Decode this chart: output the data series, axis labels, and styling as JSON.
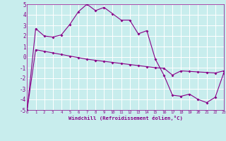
{
  "xlabel": "Windchill (Refroidissement éolien,°C)",
  "bg_color": "#c8eded",
  "grid_color": "#b0dede",
  "line_color": "#880088",
  "xlim": [
    0,
    23
  ],
  "ylim": [
    -5,
    5
  ],
  "xticks": [
    0,
    1,
    2,
    3,
    4,
    5,
    6,
    7,
    8,
    9,
    10,
    11,
    12,
    13,
    14,
    15,
    16,
    17,
    18,
    19,
    20,
    21,
    22,
    23
  ],
  "yticks": [
    -5,
    -4,
    -3,
    -2,
    -1,
    0,
    1,
    2,
    3,
    4,
    5
  ],
  "line1_x": [
    0,
    1,
    2,
    3,
    4,
    5,
    6,
    7,
    8,
    9,
    10,
    11,
    12,
    13,
    14,
    15,
    16,
    17,
    18,
    19,
    20,
    21,
    22,
    23
  ],
  "line1_y": [
    -5,
    2.7,
    2.0,
    1.9,
    2.1,
    3.1,
    4.3,
    5.0,
    4.4,
    4.7,
    4.1,
    3.5,
    3.5,
    2.2,
    2.5,
    -0.2,
    -1.7,
    -3.6,
    -3.7,
    -3.5,
    -4.0,
    -4.3,
    -3.8,
    -1.5
  ],
  "line2_x": [
    0,
    1,
    2,
    3,
    4,
    5,
    6,
    7,
    8,
    9,
    10,
    11,
    12,
    13,
    14,
    15,
    16,
    17,
    18,
    19,
    20,
    21,
    22,
    23
  ],
  "line2_y": [
    -5,
    0.7,
    0.55,
    0.4,
    0.25,
    0.1,
    -0.05,
    -0.2,
    -0.3,
    -0.4,
    -0.5,
    -0.6,
    -0.7,
    -0.8,
    -0.9,
    -1.0,
    -1.05,
    -1.7,
    -1.3,
    -1.35,
    -1.4,
    -1.45,
    -1.5,
    -1.3
  ]
}
